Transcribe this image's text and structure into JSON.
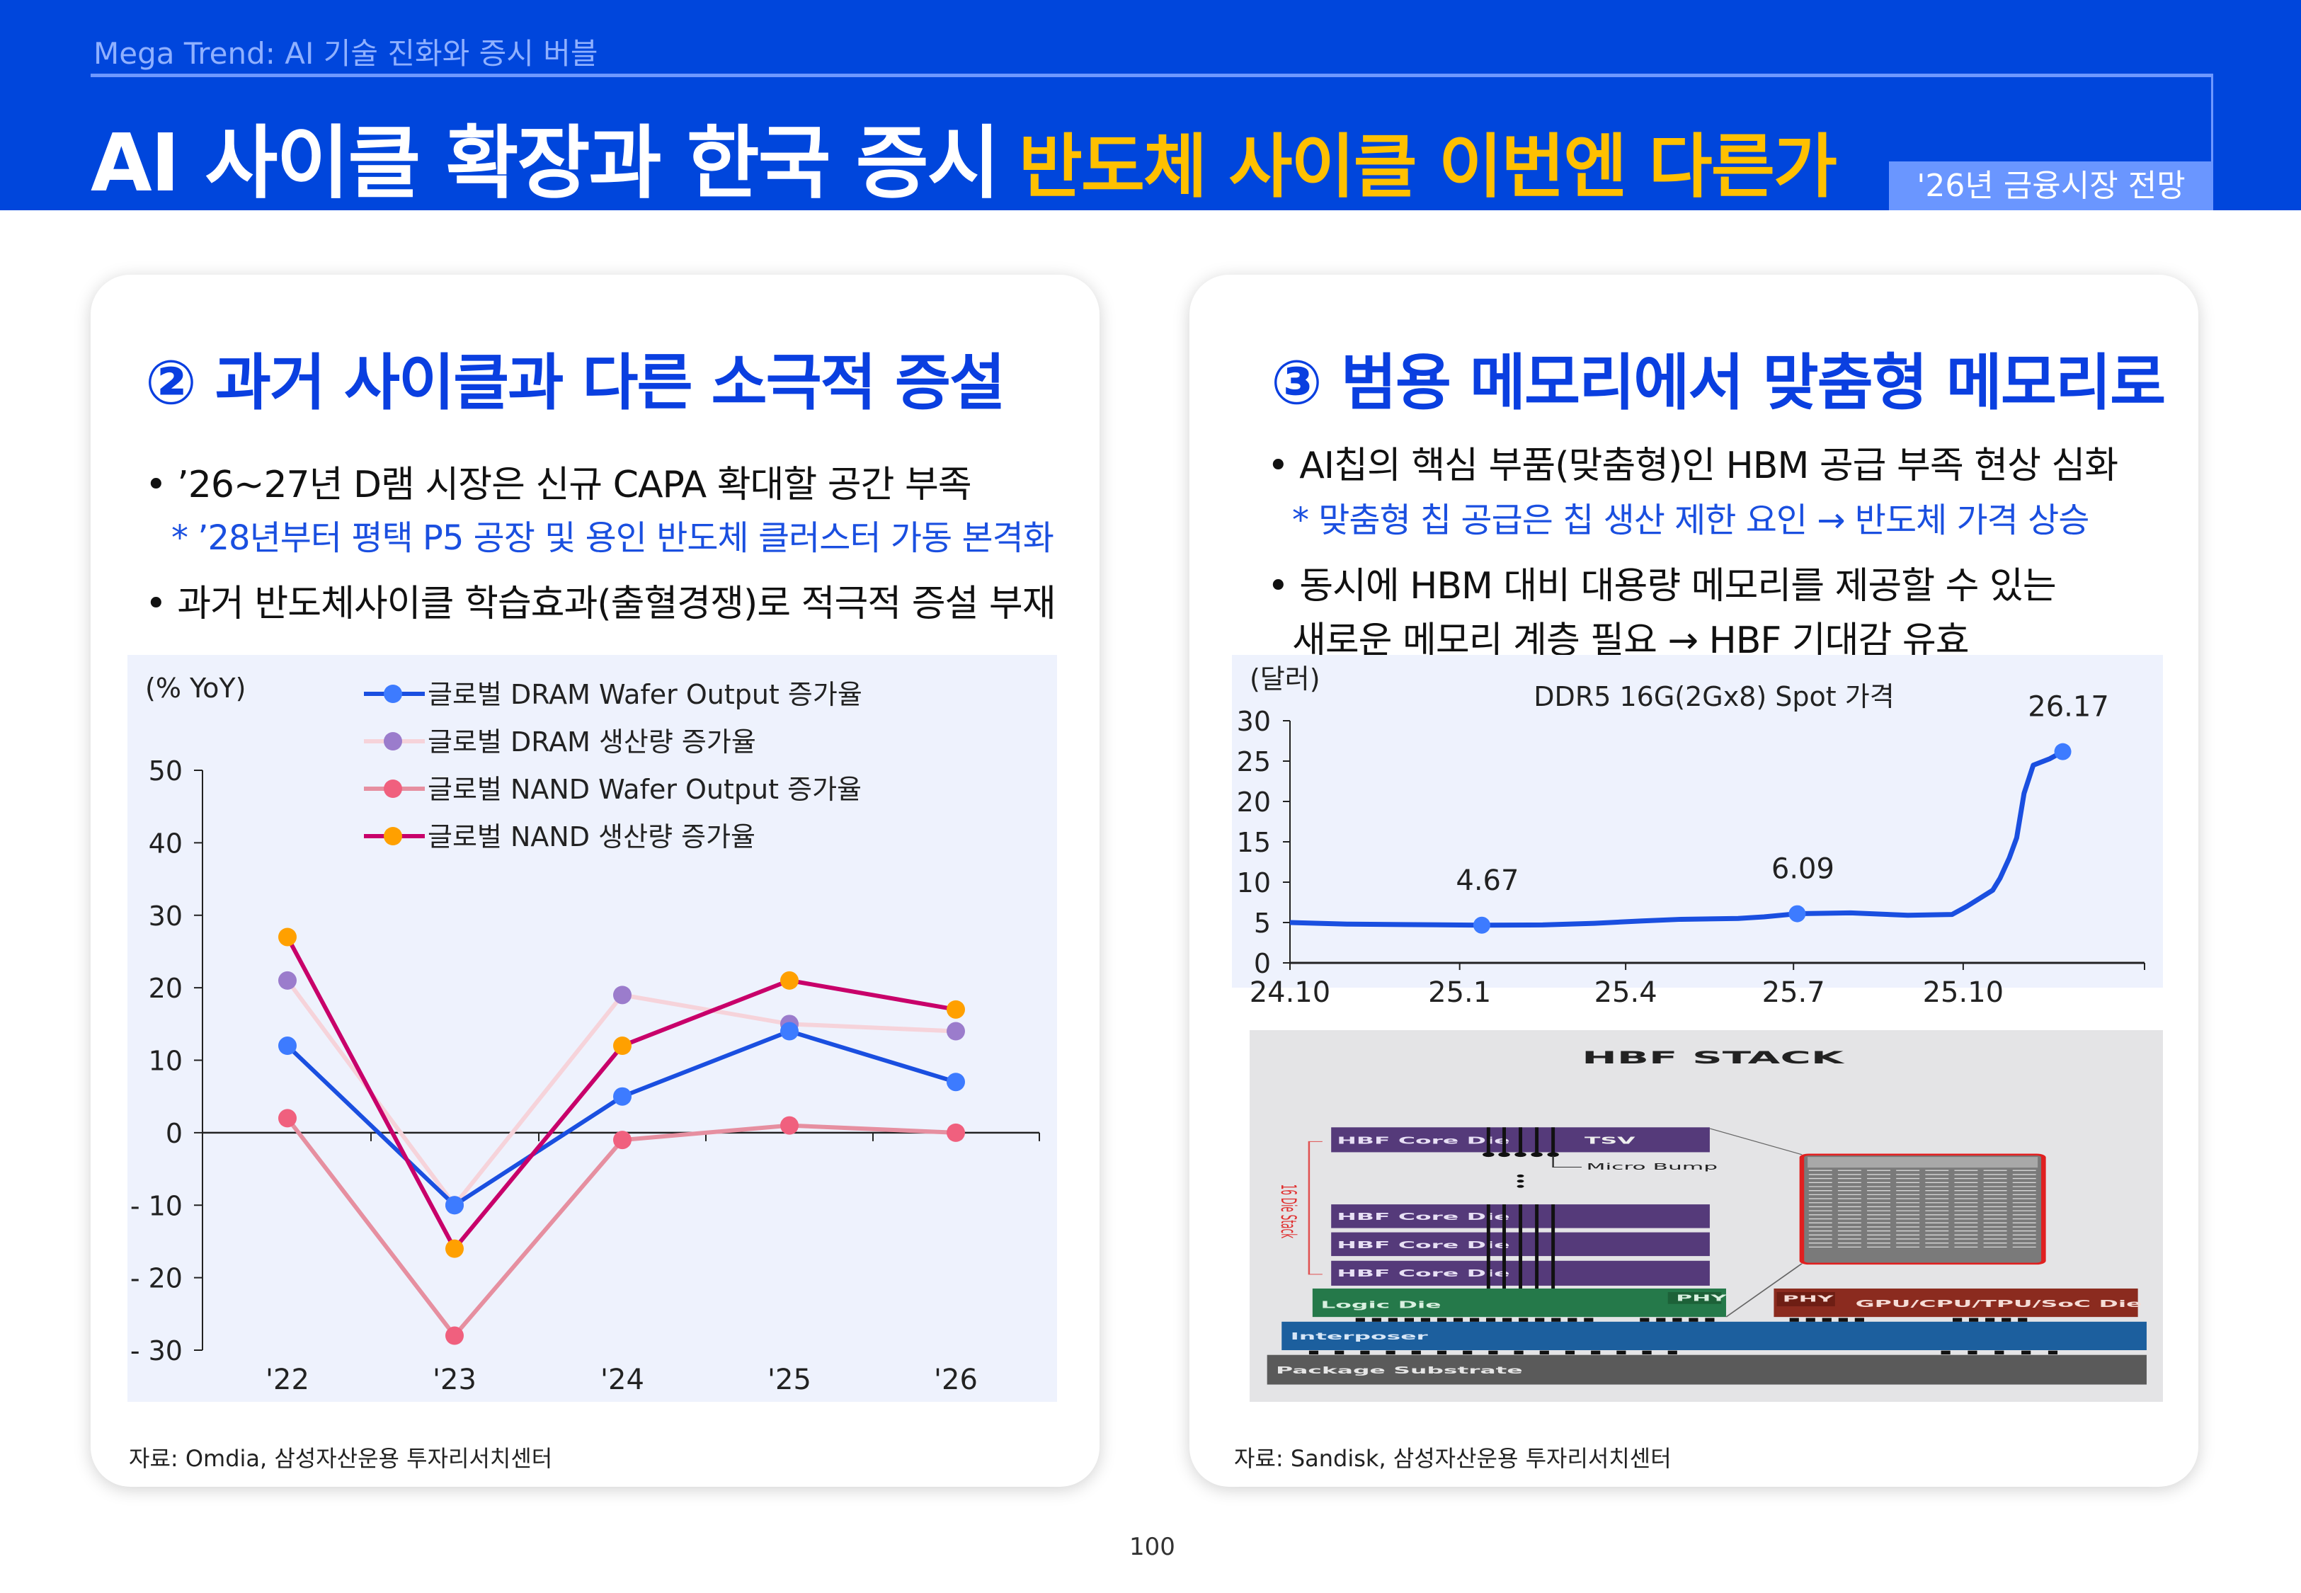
{
  "header": {
    "kicker": "Mega Trend: AI 기술 진화와 증시 버블",
    "title_main": "AI 사이클 확장과 한국 증시",
    "title_highlight": "반도체 사이클 이번엔 다른가",
    "badge": "'26년 금융시장 전망",
    "colors": {
      "band": "#0046dc",
      "highlight": "#ffc000",
      "badge": "#6a96ff"
    }
  },
  "left_card": {
    "heading": "② 과거 사이클과 다른 소극적 증설",
    "bullets": [
      {
        "text": "• ’26~27년 D램 시장은 신규 CAPA 확대할 공간 부족",
        "note": "* ’28년부터 평택 P5 공장 및 용인 반도체 클러스터 가동 본격화"
      },
      {
        "text": "• 과거 반도체사이클 학습효과(출혈경쟁)로 적극적 증설 부재"
      }
    ],
    "source": "자료: Omdia, 삼성자산운용 투자리서치센터"
  },
  "right_card": {
    "heading": "③ 범용 메모리에서 맞춤형 메모리로",
    "bullets": [
      {
        "text": "• AI칩의 핵심 부품(맞춤형)인 HBM 공급 부족 현상 심화",
        "note": "* 맞춤형 칩 공급은 칩 생산 제한 요인 → 반도체 가격 상승"
      },
      {
        "text": "• 동시에 HBM 대비 대용량 메모리를 제공할 수 있는",
        "text2": "새로운 메모리 계층 필요 → HBF 기대감 유효"
      }
    ],
    "source": "자료: Sandisk, 삼성자산운용 투자리서치센터",
    "diagram": {
      "title": "HBF STACK",
      "core_die": "HBF Core Die",
      "tsv": "TSV",
      "micro_bump": "Micro Bump",
      "stack_label": "16 Die Stack",
      "logic_die": "Logic Die",
      "phy": "PHY",
      "soc_die": "GPU/CPU/TPU/SoC Die",
      "interposer": "Interposer",
      "substrate": "Package Substrate"
    }
  },
  "page_number": "100",
  "chart_data": [
    {
      "type": "line",
      "ylabel": "(% YoY)",
      "categories": [
        "'22",
        "'23",
        "'24",
        "'25",
        "'26"
      ],
      "ylim": [
        -30,
        50
      ],
      "yticks": [
        50,
        40,
        30,
        20,
        10,
        0,
        -10,
        -20,
        -30
      ],
      "grid": false,
      "legend": "top",
      "series": [
        {
          "name": "글로벌 DRAM Wafer Output 증가율",
          "values": [
            12,
            -10,
            5,
            14,
            7
          ],
          "line_color": "#1a4fe0",
          "marker_color": "#3d7bff"
        },
        {
          "name": "글로벌 DRAM 생산량 증가율",
          "values": [
            21,
            -10,
            19,
            15,
            14
          ],
          "line_color": "#f6d3da",
          "marker_color": "#9b7ccc"
        },
        {
          "name": "글로벌 NAND Wafer Output 증가율",
          "values": [
            2,
            -28,
            -1,
            1,
            0
          ],
          "line_color": "#e68fa0",
          "marker_color": "#f0607e"
        },
        {
          "name": "글로벌 NAND 생산량 증가율",
          "values": [
            27,
            -16,
            12,
            21,
            17
          ],
          "line_color": "#c8006a",
          "marker_color": "#ffa000"
        }
      ]
    },
    {
      "type": "line",
      "title": "DDR5 16G(2Gx8) Spot 가격",
      "ylabel": "(달러)",
      "ylim": [
        0,
        30
      ],
      "yticks": [
        30,
        25,
        20,
        15,
        10,
        5,
        0
      ],
      "xticks": [
        {
          "label": "24.10",
          "date": "2024-10-01"
        },
        {
          "label": "25.1",
          "date": "2025-01-01"
        },
        {
          "label": "25.4",
          "date": "2025-04-01"
        },
        {
          "label": "25.7",
          "date": "2025-07-01"
        },
        {
          "label": "25.10",
          "date": "2025-10-01"
        }
      ],
      "xlim": [
        "2024-10-01",
        "2026-01-01"
      ],
      "line_color": "#1a4fe0",
      "marker_color": "#3d7bff",
      "series": [
        {
          "points": [
            [
              "2024-10-01",
              5.0
            ],
            [
              "2024-11-01",
              4.8
            ],
            [
              "2024-12-01",
              4.75
            ],
            [
              "2025-01-13",
              4.67
            ],
            [
              "2025-02-15",
              4.7
            ],
            [
              "2025-03-15",
              4.9
            ],
            [
              "2025-04-10",
              5.2
            ],
            [
              "2025-05-01",
              5.4
            ],
            [
              "2025-06-01",
              5.5
            ],
            [
              "2025-06-15",
              5.7
            ],
            [
              "2025-07-03",
              6.09
            ],
            [
              "2025-08-01",
              6.2
            ],
            [
              "2025-09-01",
              5.9
            ],
            [
              "2025-09-25",
              6.0
            ],
            [
              "2025-10-03",
              7.0
            ],
            [
              "2025-10-10",
              8.0
            ],
            [
              "2025-10-17",
              9.0
            ],
            [
              "2025-10-21",
              10.5
            ],
            [
              "2025-10-26",
              13.0
            ],
            [
              "2025-10-30",
              15.5
            ],
            [
              "2025-11-03",
              21.0
            ],
            [
              "2025-11-08",
              24.5
            ],
            [
              "2025-11-17",
              25.3
            ],
            [
              "2025-11-24",
              26.17
            ]
          ]
        }
      ],
      "annotations": [
        {
          "label": "4.67",
          "date": "2025-01-13",
          "value": 4.67
        },
        {
          "label": "6.09",
          "date": "2025-07-03",
          "value": 6.09
        },
        {
          "label": "26.17",
          "date": "2025-11-24",
          "value": 26.17
        }
      ]
    }
  ]
}
